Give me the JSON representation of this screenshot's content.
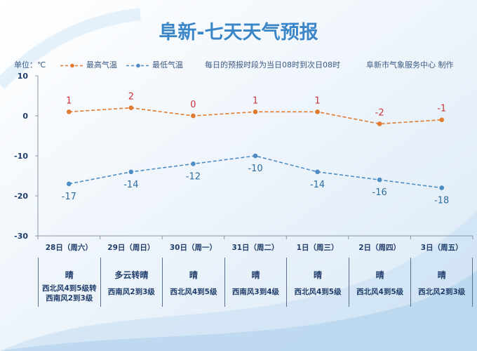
{
  "title": "阜新-七天天气预报",
  "unit_label": "单位：℃",
  "legend": {
    "high": "最高气温",
    "low": "最低气温"
  },
  "note": "每日的预报时段为当日08时到次日08时",
  "producer": "阜新市气象服务中心 制作",
  "colors": {
    "high": "#e07a2e",
    "low": "#4e8cc4",
    "title": "#3a86c8",
    "text": "#1f3d6b"
  },
  "chart_data": {
    "type": "line",
    "categories": [
      "28日（周六）",
      "29日（周日）",
      "30日（周一）",
      "31日（周二）",
      "1日（周三）",
      "2日（周四）",
      "3日（周五）"
    ],
    "series": [
      {
        "name": "最高气温",
        "values": [
          1,
          2,
          0,
          1,
          1,
          -2,
          -1
        ],
        "labels": [
          "1",
          "2",
          "0",
          "1",
          "1",
          "-2",
          "-1"
        ]
      },
      {
        "name": "最低气温",
        "values": [
          -17,
          -14,
          -12,
          -10,
          -14,
          -16,
          -18
        ],
        "labels": [
          "-17",
          "-14",
          "-12",
          "-10",
          "-14",
          "-16",
          "-18"
        ]
      }
    ],
    "ylim": [
      -30,
      10
    ],
    "yticks": [
      "10",
      "0",
      "-10",
      "-20",
      "-30"
    ],
    "xlabel": "",
    "ylabel": "",
    "grid": false,
    "legend_position": "top-left"
  },
  "days": [
    {
      "weather": "晴",
      "wind": [
        "西北风4到5级转",
        "西南风2到3级"
      ]
    },
    {
      "weather": "多云转晴",
      "wind": [
        "西南风2到3级"
      ]
    },
    {
      "weather": "晴",
      "wind": [
        "西北风4到5级"
      ]
    },
    {
      "weather": "晴",
      "wind": [
        "西南风3到4级"
      ]
    },
    {
      "weather": "晴",
      "wind": [
        "西北风4到5级"
      ]
    },
    {
      "weather": "晴",
      "wind": [
        "西北风4到5级"
      ]
    },
    {
      "weather": "晴",
      "wind": [
        "西北风2到3级"
      ]
    }
  ]
}
